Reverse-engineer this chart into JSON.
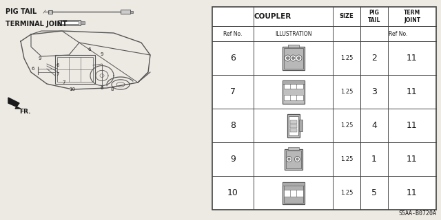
{
  "bg_color": "#ede9e3",
  "diagram_code": "S5AA-B0720A",
  "pig_tail_label": "PIG TAIL",
  "terminal_joint_label": "TERMINAL JOINT",
  "table_rows": [
    {
      "ref": "6",
      "size": "1.25",
      "pig_tail": "2",
      "term_joint": "11"
    },
    {
      "ref": "7",
      "size": "1.25",
      "pig_tail": "3",
      "term_joint": "11"
    },
    {
      "ref": "8",
      "size": "1.25",
      "pig_tail": "4",
      "term_joint": "11"
    },
    {
      "ref": "9",
      "size": "1.25",
      "pig_tail": "1",
      "term_joint": "11"
    },
    {
      "ref": "10",
      "size": "1.25",
      "pig_tail": "5",
      "term_joint": "11"
    }
  ],
  "line_color": "#555555",
  "text_color": "#1a1a1a",
  "table_line_color": "#444444"
}
